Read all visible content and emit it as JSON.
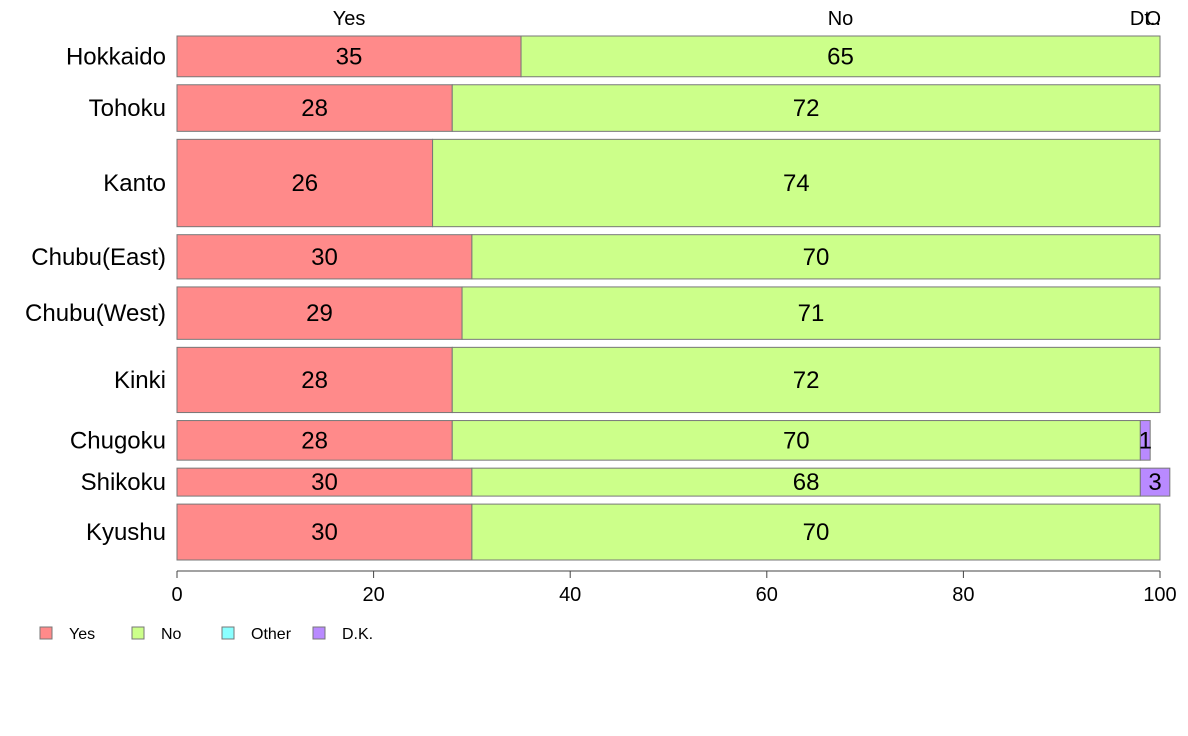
{
  "chart_data": {
    "type": "bar",
    "orientation": "horizontal",
    "stacked": true,
    "categories": [
      "Hokkaido",
      "Tohoku",
      "Kanto",
      "Chubu(East)",
      "Chubu(West)",
      "Kinki",
      "Chugoku",
      "Shikoku",
      "Kyushu"
    ],
    "series": [
      {
        "name": "Yes",
        "color": "#ff8a8a",
        "values": [
          35,
          28,
          26,
          30,
          29,
          28,
          28,
          30,
          30
        ],
        "labels": [
          "35",
          "28",
          "26",
          "30",
          "29",
          "28",
          "28",
          "30",
          "30"
        ]
      },
      {
        "name": "No",
        "color": "#ccff8a",
        "values": [
          65,
          72,
          74,
          70,
          71,
          72,
          70,
          68,
          70
        ],
        "labels": [
          "65",
          "72",
          "74",
          "70",
          "71",
          "72",
          "70",
          "68",
          "70"
        ]
      },
      {
        "name": "Other",
        "color": "#8affff",
        "values": [
          0,
          0,
          0,
          0,
          0,
          0,
          0,
          0,
          0
        ],
        "labels": [
          "",
          "",
          "",
          "",
          "",
          "",
          "",
          "",
          ""
        ]
      },
      {
        "name": "D.K.",
        "color": "#b98aff",
        "values": [
          0,
          0,
          0,
          0,
          0,
          0,
          1,
          3,
          0
        ],
        "labels": [
          "",
          "",
          "",
          "",
          "",
          "",
          "1",
          "3",
          ""
        ]
      }
    ],
    "row_weights": [
      35,
      40,
      75,
      38,
      45,
      56,
      34,
      24,
      48
    ],
    "top_labels": [
      "Yes",
      "No",
      "Dt..",
      "O"
    ],
    "xlim": [
      0,
      100
    ],
    "xticks": [
      "0",
      "20",
      "40",
      "60",
      "80",
      "100"
    ],
    "xlabel": "",
    "ylabel": "",
    "title": "",
    "legend_position": "bottom-left",
    "grid": false
  }
}
